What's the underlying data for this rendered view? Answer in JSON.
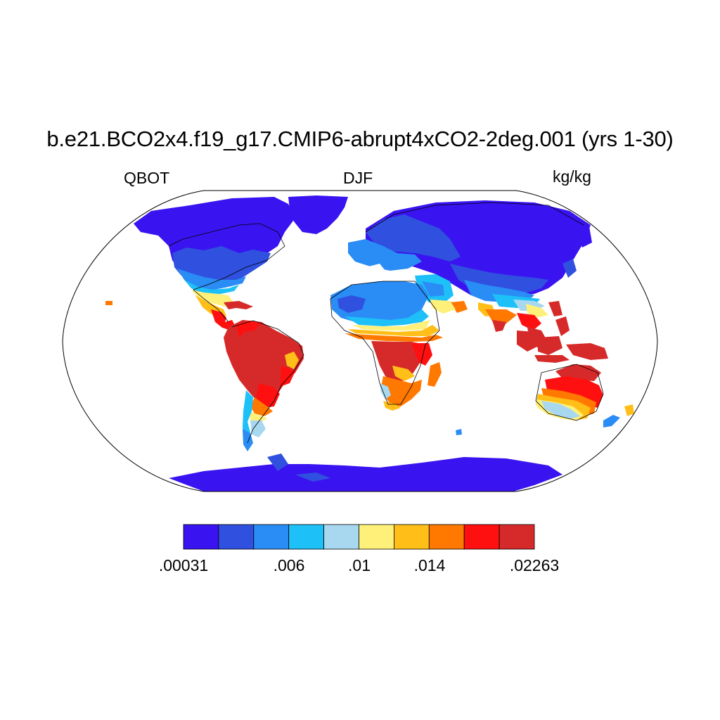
{
  "title": "b.e21.BCO2x4.f19_g17.CMIP6-abrupt4xCO2-2deg.001 (yrs 1-30)",
  "left_label": "QBOT",
  "center_label": "DJF",
  "right_label": "kg/kg",
  "colorbar": {
    "colors": [
      "#3a14f0",
      "#3050e0",
      "#2a8cf5",
      "#1ec0f8",
      "#a8d8f0",
      "#fff07a",
      "#ffbf18",
      "#ff7800",
      "#ff1010",
      "#d62a2a"
    ],
    "tick_labels": [
      ".00031",
      ".006",
      ".01",
      ".014",
      ".02263"
    ]
  },
  "chart_data": {
    "type": "map",
    "projection": "Robinson",
    "variable": "QBOT",
    "season": "DJF",
    "units": "kg/kg",
    "levels": [
      0.00031,
      0.006,
      0.01,
      0.014,
      0.02263
    ]
  }
}
